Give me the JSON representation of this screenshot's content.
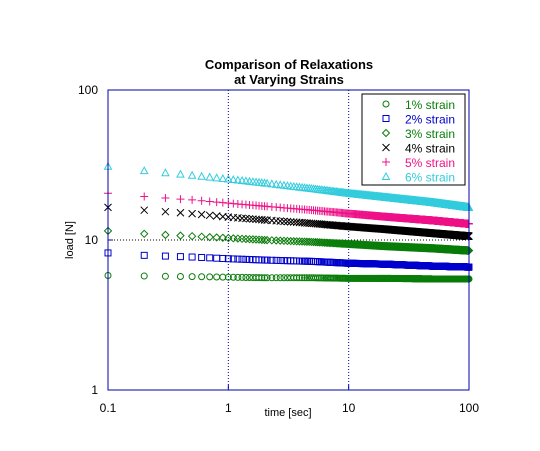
{
  "chart_data": {
    "type": "scatter",
    "title": [
      "Comparison of Relaxations",
      "at Varying Strains"
    ],
    "xlabel": "time [sec]",
    "ylabel": "load [N]",
    "xscale": "log",
    "yscale": "log",
    "xlim": [
      0.1,
      100
    ],
    "ylim": [
      1,
      100
    ],
    "x_ticks": [
      "0.1",
      "1",
      "10",
      "100"
    ],
    "y_ticks": [
      "1",
      "10",
      "100"
    ],
    "grid": "dotted lines at x=1, x=10, y=10",
    "legend_position": "top-right",
    "series": [
      {
        "name": "1% strain",
        "marker": "circle",
        "color": "#0a7d0a",
        "x": [
          0.1,
          0.2,
          0.5,
          1,
          2,
          5,
          10,
          20,
          50,
          100
        ],
        "y": [
          5.8,
          5.75,
          5.7,
          5.65,
          5.6,
          5.6,
          5.55,
          5.55,
          5.5,
          5.5
        ]
      },
      {
        "name": "2% strain",
        "marker": "square",
        "color": "#0000cc",
        "x": [
          0.1,
          0.2,
          0.5,
          1,
          2,
          5,
          10,
          20,
          50,
          100
        ],
        "y": [
          8.2,
          7.9,
          7.7,
          7.5,
          7.35,
          7.2,
          7.0,
          6.9,
          6.7,
          6.6
        ]
      },
      {
        "name": "3% strain",
        "marker": "diamond",
        "color": "#0a7d0a",
        "x": [
          0.1,
          0.2,
          0.5,
          1,
          2,
          5,
          10,
          20,
          50,
          100
        ],
        "y": [
          11.5,
          11.0,
          10.6,
          10.3,
          10.0,
          9.7,
          9.4,
          9.1,
          8.8,
          8.5
        ]
      },
      {
        "name": "4% strain",
        "marker": "x",
        "color": "#000000",
        "x": [
          0.1,
          0.2,
          0.5,
          1,
          2,
          5,
          10,
          20,
          50,
          100
        ],
        "y": [
          16.5,
          15.8,
          15.0,
          14.2,
          13.6,
          12.9,
          12.3,
          11.8,
          11.1,
          10.6
        ]
      },
      {
        "name": "5% strain",
        "marker": "plus",
        "color": "#ee1188",
        "x": [
          0.1,
          0.2,
          0.5,
          1,
          2,
          5,
          10,
          20,
          50,
          100
        ],
        "y": [
          20.5,
          19.5,
          18.5,
          17.6,
          16.8,
          15.8,
          15.0,
          14.3,
          13.5,
          12.8
        ]
      },
      {
        "name": "6% strain",
        "marker": "triangle",
        "color": "#33ccdd",
        "x": [
          0.1,
          0.2,
          0.5,
          1,
          2,
          5,
          10,
          20,
          50,
          100
        ],
        "y": [
          31.0,
          29.0,
          27.0,
          25.5,
          24.0,
          22.0,
          20.5,
          19.3,
          17.8,
          16.5
        ]
      }
    ]
  }
}
